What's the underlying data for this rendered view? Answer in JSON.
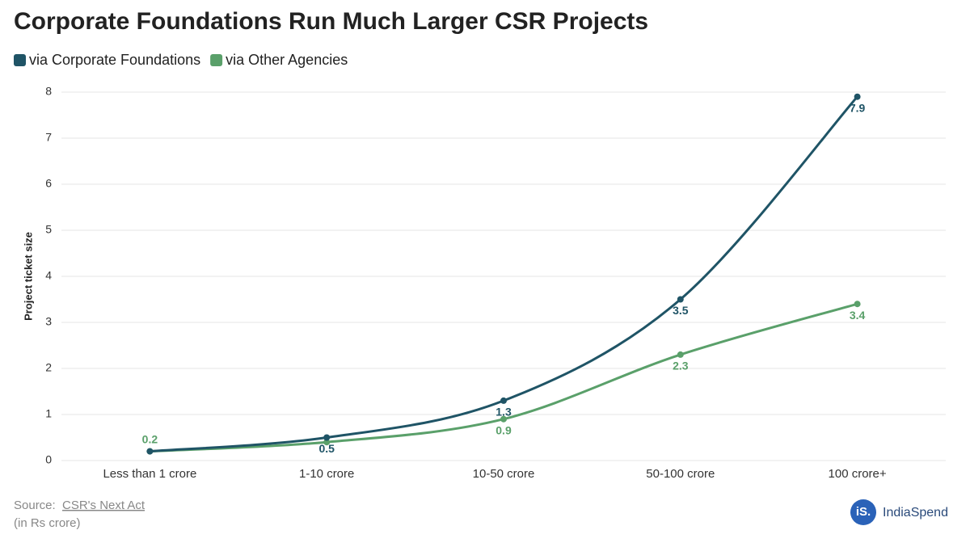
{
  "chart_data": {
    "type": "line",
    "title": "Corporate Foundations Run Much Larger CSR Projects",
    "y_label": "Project ticket size",
    "categories": [
      "Less than 1 crore",
      "1-10 crore",
      "10-50 crore",
      "50-100 crore",
      "100 crore+"
    ],
    "series": [
      {
        "name": "via Corporate Foundations",
        "color": "#1f5466",
        "values": [
          0.2,
          0.5,
          1.3,
          3.5,
          7.9
        ],
        "value_labels": [
          null,
          "0.5",
          "1.3",
          "3.5",
          "7.9"
        ]
      },
      {
        "name": "via Other Agencies",
        "color": "#5aa06a",
        "values": [
          0.2,
          0.4,
          0.9,
          2.3,
          3.4
        ],
        "value_labels": [
          "0.2",
          null,
          "0.9",
          "2.3",
          "3.4"
        ]
      }
    ],
    "ylim": [
      0,
      8
    ],
    "yticks": [
      0,
      1,
      2,
      3,
      4,
      5,
      6,
      7,
      8
    ],
    "grid": true,
    "source_label": "Source:",
    "source": "CSR's Next Act",
    "note": "(in Rs crore)",
    "brand_mark": "iS.",
    "brand": "IndiaSpend"
  }
}
